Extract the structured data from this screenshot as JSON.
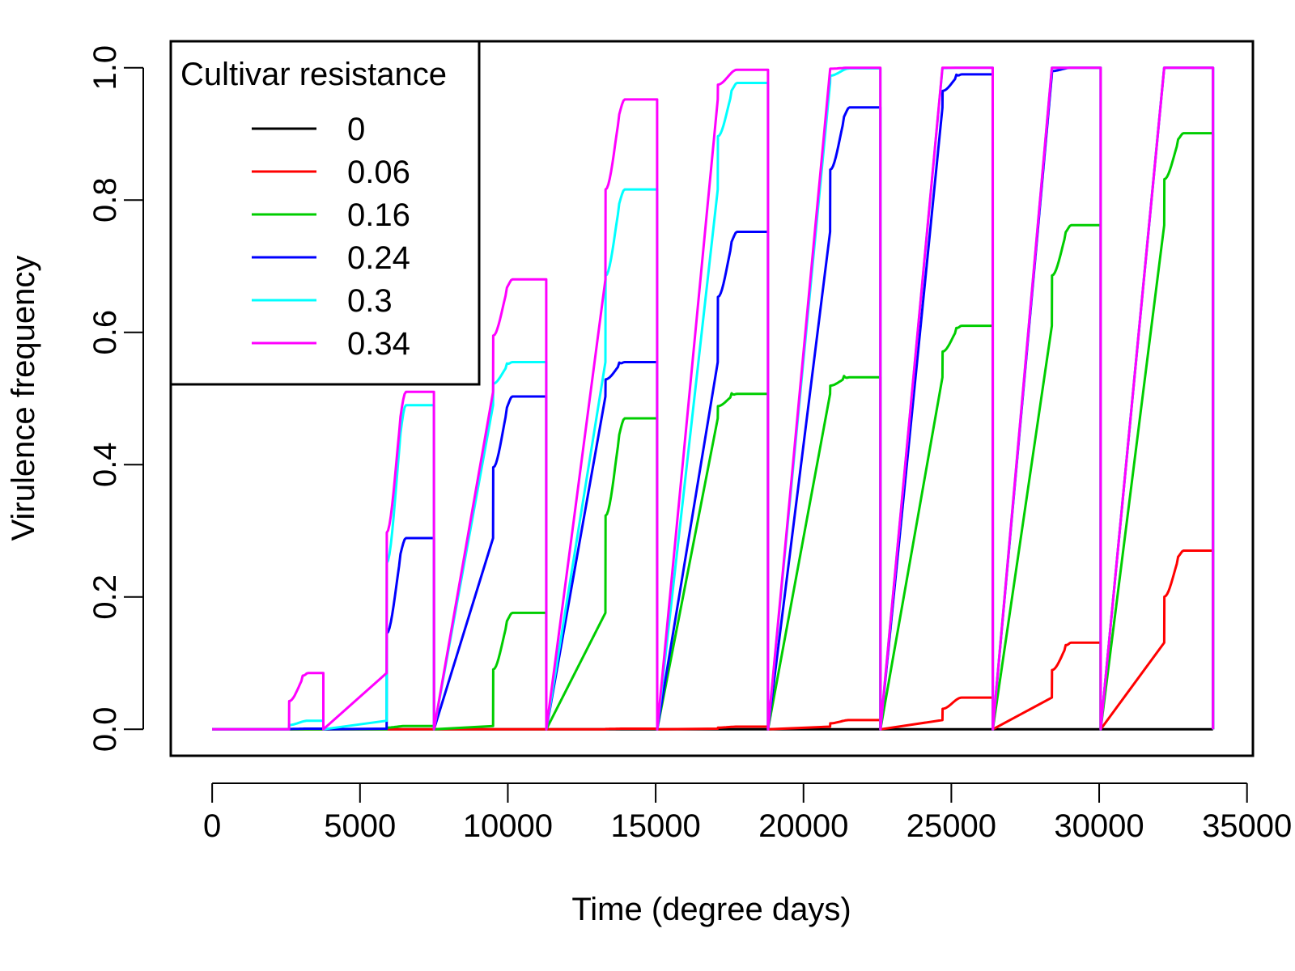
{
  "chart_data": {
    "type": "line",
    "xlabel": "Time (degree days)",
    "ylabel": "Virulence frequency",
    "xlim": [
      -1400,
      35200
    ],
    "ylim": [
      -0.04,
      1.04
    ],
    "xticks": [
      0,
      5000,
      10000,
      15000,
      20000,
      25000,
      30000,
      35000
    ],
    "xtick_labels": [
      "0",
      "5000",
      "10000",
      "15000",
      "20000",
      "25000",
      "30000",
      "35000"
    ],
    "yticks": [
      0.0,
      0.2,
      0.4,
      0.6,
      0.8,
      1.0
    ],
    "ytick_labels": [
      "0.0",
      "0.2",
      "0.4",
      "0.6",
      "0.8",
      "1.0"
    ],
    "grid": false,
    "legend": {
      "title": "Cultivar resistance",
      "position": "top-left"
    },
    "seasons": [
      {
        "start": 2600,
        "end": 3760
      },
      {
        "start": 5900,
        "end": 7500
      },
      {
        "start": 9500,
        "end": 11300
      },
      {
        "start": 13300,
        "end": 15050
      },
      {
        "start": 17100,
        "end": 18800
      },
      {
        "start": 20900,
        "end": 22600
      },
      {
        "start": 24700,
        "end": 26400
      },
      {
        "start": 28400,
        "end": 30050
      },
      {
        "start": 32200,
        "end": 33850
      }
    ],
    "x_end": 33850,
    "series": [
      {
        "name": "0",
        "color": "#000000",
        "season_values": [
          0,
          0,
          0,
          0,
          0,
          0,
          0,
          0,
          0
        ]
      },
      {
        "name": "0.06",
        "color": "#ff0000",
        "season_values": [
          0,
          0.0,
          0.0,
          0.001,
          0.004,
          0.014,
          0.048,
          0.131,
          0.27
        ]
      },
      {
        "name": "0.16",
        "color": "#00cd00",
        "season_values": [
          0,
          0.005,
          0.176,
          0.47,
          0.507,
          0.532,
          0.61,
          0.762,
          0.901
        ]
      },
      {
        "name": "0.24",
        "color": "#0000ff",
        "season_values": [
          0.001,
          0.289,
          0.503,
          0.555,
          0.752,
          0.94,
          0.99,
          1.0,
          1.0
        ]
      },
      {
        "name": "0.3",
        "color": "#00ffff",
        "season_values": [
          0.013,
          0.49,
          0.555,
          0.816,
          0.977,
          0.999,
          1.0,
          1.0,
          1.0
        ]
      },
      {
        "name": "0.34",
        "color": "#ff00ff",
        "season_values": [
          0.085,
          0.51,
          0.68,
          0.952,
          0.997,
          1.0,
          1.0,
          1.0,
          1.0
        ]
      }
    ]
  }
}
